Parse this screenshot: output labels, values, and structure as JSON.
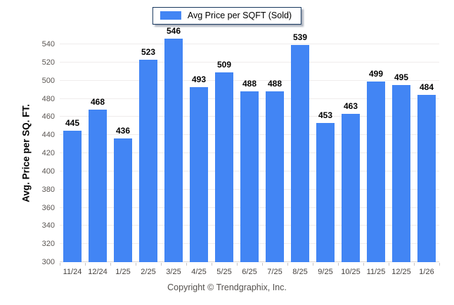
{
  "legend": {
    "label": "Avg Price per SQFT (Sold)"
  },
  "chart_data": {
    "type": "bar",
    "title": "",
    "categories": [
      "11/24",
      "12/24",
      "1/25",
      "2/25",
      "3/25",
      "4/25",
      "5/25",
      "6/25",
      "7/25",
      "8/25",
      "9/25",
      "10/25",
      "11/25",
      "12/25",
      "1/26"
    ],
    "values": [
      445,
      468,
      436,
      523,
      546,
      493,
      509,
      488,
      488,
      539,
      453,
      463,
      499,
      495,
      484
    ],
    "series_name": "Avg Price per SQFT (Sold)",
    "xlabel": "",
    "ylabel": "Avg. Price per SQ. FT.",
    "ylim": [
      300,
      540
    ],
    "ytick_step": 20,
    "grid": true,
    "legend_position": "top-center",
    "bar_color": "#4285F4",
    "value_labels": true
  },
  "footer": {
    "copyright": "Copyright © Trendgraphix, Inc."
  }
}
